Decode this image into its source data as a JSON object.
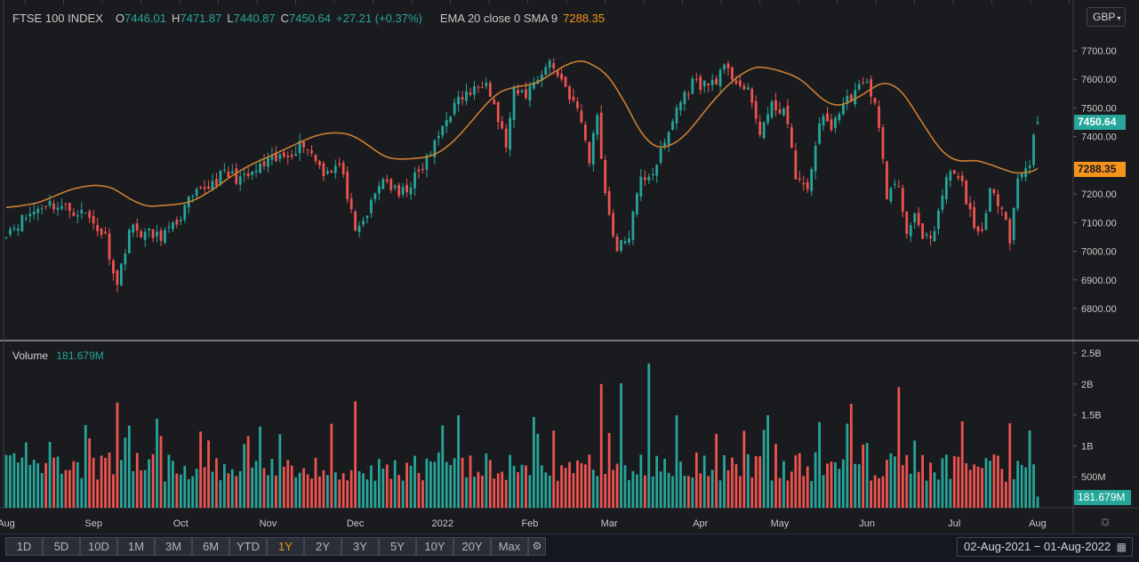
{
  "legend": {
    "symbol": "FTSE 100 INDEX",
    "o_label": "O",
    "o_value": "7446.01",
    "h_label": "H",
    "h_value": "7471.87",
    "l_label": "L",
    "l_value": "7440.87",
    "c_label": "C",
    "c_value": "7450.64",
    "change": "+27.21 (+0.37%)",
    "ema_label": "EMA 20 close 0 SMA 9",
    "ema_value": "7288.35"
  },
  "volume_legend": {
    "label": "Volume",
    "value": "181.679M"
  },
  "currency": {
    "label": "GBP",
    "icon": "chevron-down-icon"
  },
  "price_tags": {
    "last": "7450.64",
    "ema": "7288.35",
    "volume": "181.679M"
  },
  "colors": {
    "up": "#26a69a",
    "down": "#ef5350",
    "ema": "#c97f32",
    "up_vol": "#26a69a",
    "down_vol": "#ef5350",
    "active_range": "#f7931a"
  },
  "toolbar": {
    "ranges": [
      "1D",
      "5D",
      "10D",
      "1M",
      "3M",
      "6M",
      "YTD",
      "1Y",
      "2Y",
      "3Y",
      "5Y",
      "10Y",
      "20Y",
      "Max"
    ],
    "active": "1Y",
    "settings_icon": "gear-icon",
    "date_range": "02-Aug-2021  −  01-Aug-2022",
    "calendar_icon": "calendar-icon"
  },
  "chart_data": {
    "type": "candlestick",
    "price_axis": {
      "ticks": [
        6800,
        6900,
        7000,
        7100,
        7200,
        7300,
        7400,
        7500,
        7600,
        7700
      ],
      "tick_labels": [
        "6800.00",
        "6900.00",
        "7000.00",
        "7100.00",
        "7200.00",
        "7300.00",
        "7400.00",
        "7500.00",
        "7600.00",
        "7700.00"
      ]
    },
    "volume_axis": {
      "ticks": [
        500,
        1000,
        1500,
        2000,
        2500
      ],
      "tick_labels": [
        "500M",
        "1B",
        "1.5B",
        "2B",
        "2.5B"
      ],
      "unit": "millions"
    },
    "x_labels": [
      "Aug",
      "Sep",
      "Oct",
      "Nov",
      "Dec",
      "2022",
      "Feb",
      "Mar",
      "Apr",
      "May",
      "Jun",
      "Jul",
      "Aug"
    ],
    "x_label_index": [
      0,
      22,
      44,
      66,
      88,
      110,
      132,
      152,
      175,
      195,
      217,
      239,
      260
    ],
    "anchors": [
      [
        0,
        7070
      ],
      [
        5,
        7120
      ],
      [
        10,
        7170
      ],
      [
        15,
        7150
      ],
      [
        20,
        7130
      ],
      [
        25,
        7050
      ],
      [
        28,
        6880
      ],
      [
        31,
        7080
      ],
      [
        38,
        7050
      ],
      [
        42,
        7080
      ],
      [
        46,
        7170
      ],
      [
        50,
        7220
      ],
      [
        55,
        7270
      ],
      [
        60,
        7250
      ],
      [
        65,
        7300
      ],
      [
        70,
        7330
      ],
      [
        75,
        7380
      ],
      [
        80,
        7280
      ],
      [
        84,
        7300
      ],
      [
        86,
        7200
      ],
      [
        88,
        7050
      ],
      [
        91,
        7130
      ],
      [
        95,
        7260
      ],
      [
        99,
        7190
      ],
      [
        104,
        7270
      ],
      [
        108,
        7370
      ],
      [
        111,
        7470
      ],
      [
        115,
        7540
      ],
      [
        118,
        7560
      ],
      [
        121,
        7610
      ],
      [
        124,
        7460
      ],
      [
        126,
        7370
      ],
      [
        128,
        7550
      ],
      [
        131,
        7550
      ],
      [
        134,
        7610
      ],
      [
        137,
        7660
      ],
      [
        140,
        7600
      ],
      [
        143,
        7520
      ],
      [
        145,
        7450
      ],
      [
        147,
        7320
      ],
      [
        149,
        7480
      ],
      [
        151,
        7200
      ],
      [
        154,
        7000
      ],
      [
        157,
        7060
      ],
      [
        160,
        7250
      ],
      [
        163,
        7280
      ],
      [
        166,
        7370
      ],
      [
        169,
        7500
      ],
      [
        173,
        7590
      ],
      [
        177,
        7580
      ],
      [
        181,
        7630
      ],
      [
        184,
        7600
      ],
      [
        187,
        7550
      ],
      [
        190,
        7420
      ],
      [
        193,
        7500
      ],
      [
        196,
        7500
      ],
      [
        199,
        7270
      ],
      [
        202,
        7200
      ],
      [
        205,
        7460
      ],
      [
        208,
        7440
      ],
      [
        211,
        7510
      ],
      [
        214,
        7560
      ],
      [
        217,
        7580
      ],
      [
        219,
        7530
      ],
      [
        222,
        7200
      ],
      [
        225,
        7230
      ],
      [
        227,
        7060
      ],
      [
        229,
        7150
      ],
      [
        231,
        7030
      ],
      [
        234,
        7050
      ],
      [
        236,
        7200
      ],
      [
        238,
        7280
      ],
      [
        241,
        7230
      ],
      [
        243,
        7130
      ],
      [
        246,
        7050
      ],
      [
        248,
        7200
      ],
      [
        251,
        7170
      ],
      [
        253,
        7050
      ],
      [
        255,
        7250
      ],
      [
        258,
        7310
      ],
      [
        259,
        7420
      ],
      [
        260,
        7450.64
      ]
    ],
    "last": {
      "open": 7446.01,
      "high": 7471.87,
      "low": 7440.87,
      "close": 7450.64,
      "change": 27.21,
      "change_pct": 0.37
    },
    "ema20_last": 7288.35,
    "volume_last_m": 181.679,
    "volume_spikes_m": {
      "28": 1700,
      "88": 1720,
      "150": 2000,
      "155": 2010,
      "155b": 1600,
      "162": 2330,
      "213": 1680,
      "225": 1950
    }
  }
}
